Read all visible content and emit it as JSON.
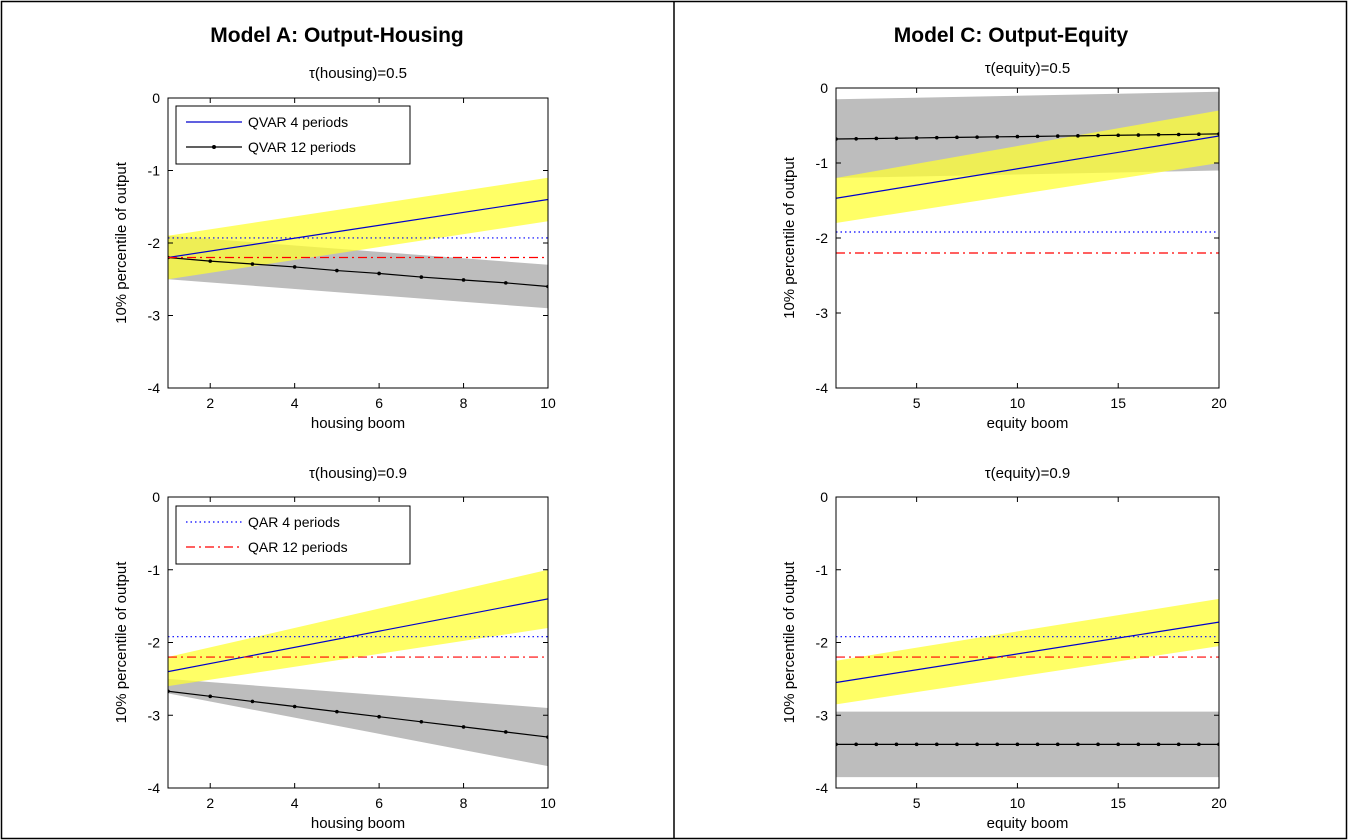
{
  "panels": [
    {
      "title": "Model A: Output-Housing"
    },
    {
      "title": "Model C: Output-Equity"
    }
  ],
  "legends": [
    {
      "items": [
        {
          "label": "QVAR 4 periods",
          "color": "#0000cc",
          "style": "solid"
        },
        {
          "label": "QVAR 12 periods",
          "color": "#000000",
          "style": "solid-dot"
        }
      ]
    },
    {
      "items": [
        {
          "label": "QAR 4 periods",
          "color": "#0000ff",
          "style": "dotted"
        },
        {
          "label": "QAR 12 periods",
          "color": "#ff0000",
          "style": "dashdot"
        }
      ]
    }
  ],
  "colors": {
    "yellow_band": "#ffff33",
    "gray_band": "#bdbdbd",
    "qvar4": "#0000cc",
    "qvar12": "#000000",
    "qar4": "#0000ff",
    "qar12": "#ff0000"
  },
  "chart_data": [
    {
      "type": "line",
      "title": "τ(housing)=0.5",
      "xlabel": "housing boom",
      "ylabel": "10% percentile of output",
      "xlim": [
        1,
        10
      ],
      "ylim": [
        -4,
        0
      ],
      "xticks": [
        "2",
        "4",
        "6",
        "8",
        "10"
      ],
      "xtick_values": [
        2,
        4,
        6,
        8,
        10
      ],
      "yticks": [
        "0",
        "-1",
        "-2",
        "-3",
        "-4"
      ],
      "ytick_values": [
        0,
        -1,
        -2,
        -3,
        -4
      ],
      "legend": 0,
      "series": [
        {
          "name": "QVAR 4 periods",
          "x": [
            1,
            10
          ],
          "y": [
            -2.2,
            -1.4
          ],
          "band": {
            "x": [
              1,
              10
            ],
            "lower": [
              -2.5,
              -1.7
            ],
            "upper": [
              -1.9,
              -1.1
            ],
            "color": "yellow_band"
          }
        },
        {
          "name": "QVAR 12 periods",
          "x": [
            1,
            2,
            3,
            4,
            5,
            6,
            7,
            8,
            9,
            10
          ],
          "y": [
            -2.2,
            -2.25,
            -2.29,
            -2.33,
            -2.38,
            -2.42,
            -2.47,
            -2.51,
            -2.55,
            -2.6
          ],
          "band": {
            "x": [
              1,
              10
            ],
            "lower": [
              -2.5,
              -2.9
            ],
            "upper": [
              -1.9,
              -2.3
            ],
            "color": "gray_band"
          }
        },
        {
          "name": "QAR 4 periods",
          "x": [
            1,
            10
          ],
          "y": [
            -1.93,
            -1.93
          ]
        },
        {
          "name": "QAR 12 periods",
          "x": [
            1,
            10
          ],
          "y": [
            -2.2,
            -2.2
          ]
        }
      ]
    },
    {
      "type": "line",
      "title": "τ(equity)=0.5",
      "xlabel": "equity boom",
      "ylabel": "10% percentile of output",
      "xlim": [
        1,
        20
      ],
      "ylim": [
        -4,
        0
      ],
      "xticks": [
        "5",
        "10",
        "15",
        "20"
      ],
      "xtick_values": [
        5,
        10,
        15,
        20
      ],
      "yticks": [
        "0",
        "-1",
        "-2",
        "-3",
        "-4"
      ],
      "ytick_values": [
        0,
        -1,
        -2,
        -3,
        -4
      ],
      "legend": null,
      "series": [
        {
          "name": "QVAR 4 periods",
          "x": [
            1,
            20
          ],
          "y": [
            -1.47,
            -0.64
          ],
          "band": {
            "x": [
              1,
              20
            ],
            "lower": [
              -1.8,
              -1.0
            ],
            "upper": [
              -1.2,
              -0.3
            ],
            "color": "yellow_band"
          }
        },
        {
          "name": "QVAR 12 periods",
          "x": [
            1,
            2,
            3,
            4,
            5,
            6,
            7,
            8,
            9,
            10,
            11,
            12,
            13,
            14,
            15,
            16,
            17,
            18,
            19,
            20
          ],
          "y": [
            -0.68,
            -0.677,
            -0.673,
            -0.67,
            -0.666,
            -0.662,
            -0.658,
            -0.655,
            -0.651,
            -0.648,
            -0.645,
            -0.641,
            -0.638,
            -0.634,
            -0.63,
            -0.627,
            -0.623,
            -0.62,
            -0.616,
            -0.612
          ],
          "band": {
            "x": [
              1,
              20
            ],
            "lower": [
              -1.2,
              -1.1
            ],
            "upper": [
              -0.15,
              -0.05
            ],
            "color": "gray_band"
          }
        },
        {
          "name": "QAR 4 periods",
          "x": [
            1,
            20
          ],
          "y": [
            -1.92,
            -1.92
          ]
        },
        {
          "name": "QAR 12 periods",
          "x": [
            1,
            20
          ],
          "y": [
            -2.2,
            -2.2
          ]
        }
      ]
    },
    {
      "type": "line",
      "title": "τ(housing)=0.9",
      "xlabel": "housing boom",
      "ylabel": "10% percentile of output",
      "xlim": [
        1,
        10
      ],
      "ylim": [
        -4,
        0
      ],
      "xticks": [
        "2",
        "4",
        "6",
        "8",
        "10"
      ],
      "xtick_values": [
        2,
        4,
        6,
        8,
        10
      ],
      "yticks": [
        "0",
        "-1",
        "-2",
        "-3",
        "-4"
      ],
      "ytick_values": [
        0,
        -1,
        -2,
        -3,
        -4
      ],
      "legend": 1,
      "series": [
        {
          "name": "QVAR 4 periods",
          "x": [
            1,
            10
          ],
          "y": [
            -2.4,
            -1.4
          ],
          "band": {
            "x": [
              1,
              10
            ],
            "lower": [
              -2.6,
              -1.8
            ],
            "upper": [
              -2.2,
              -1.0
            ],
            "color": "yellow_band"
          }
        },
        {
          "name": "QVAR 12 periods",
          "x": [
            1,
            2,
            3,
            4,
            5,
            6,
            7,
            8,
            9,
            10
          ],
          "y": [
            -2.67,
            -2.74,
            -2.81,
            -2.88,
            -2.95,
            -3.02,
            -3.09,
            -3.16,
            -3.23,
            -3.3
          ],
          "band": {
            "x": [
              1,
              10
            ],
            "lower": [
              -2.7,
              -3.7
            ],
            "upper": [
              -2.5,
              -2.9
            ],
            "color": "gray_band"
          }
        },
        {
          "name": "QAR 4 periods",
          "x": [
            1,
            10
          ],
          "y": [
            -1.92,
            -1.92
          ]
        },
        {
          "name": "QAR 12 periods",
          "x": [
            1,
            10
          ],
          "y": [
            -2.2,
            -2.2
          ]
        }
      ]
    },
    {
      "type": "line",
      "title": "τ(equity)=0.9",
      "xlabel": "equity boom",
      "ylabel": "10% percentile of output",
      "xlim": [
        1,
        20
      ],
      "ylim": [
        -4,
        0
      ],
      "xticks": [
        "5",
        "10",
        "15",
        "20"
      ],
      "xtick_values": [
        5,
        10,
        15,
        20
      ],
      "yticks": [
        "0",
        "-1",
        "-2",
        "-3",
        "-4"
      ],
      "ytick_values": [
        0,
        -1,
        -2,
        -3,
        -4
      ],
      "legend": null,
      "series": [
        {
          "name": "QVAR 4 periods",
          "x": [
            1,
            20
          ],
          "y": [
            -2.55,
            -1.72
          ],
          "band": {
            "x": [
              1,
              20
            ],
            "lower": [
              -2.85,
              -2.05
            ],
            "upper": [
              -2.25,
              -1.4
            ],
            "color": "yellow_band"
          }
        },
        {
          "name": "QVAR 12 periods",
          "x": [
            1,
            2,
            3,
            4,
            5,
            6,
            7,
            8,
            9,
            10,
            11,
            12,
            13,
            14,
            15,
            16,
            17,
            18,
            19,
            20
          ],
          "y": [
            -3.4,
            -3.4,
            -3.4,
            -3.4,
            -3.4,
            -3.4,
            -3.4,
            -3.4,
            -3.4,
            -3.4,
            -3.4,
            -3.4,
            -3.4,
            -3.4,
            -3.4,
            -3.4,
            -3.4,
            -3.4,
            -3.4,
            -3.4
          ],
          "band": {
            "x": [
              1,
              20
            ],
            "lower": [
              -3.85,
              -3.85
            ],
            "upper": [
              -2.95,
              -2.95
            ],
            "color": "gray_band"
          }
        },
        {
          "name": "QAR 4 periods",
          "x": [
            1,
            20
          ],
          "y": [
            -1.92,
            -1.92
          ]
        },
        {
          "name": "QAR 12 periods",
          "x": [
            1,
            20
          ],
          "y": [
            -2.2,
            -2.2
          ]
        }
      ]
    }
  ]
}
